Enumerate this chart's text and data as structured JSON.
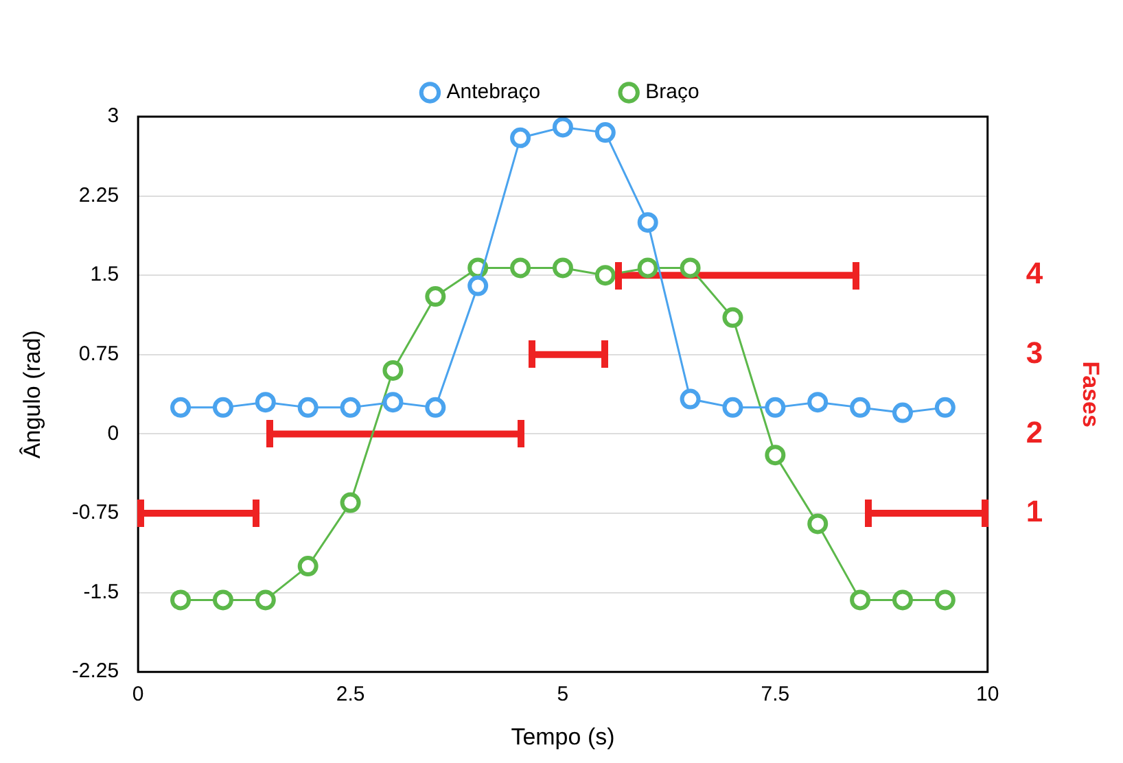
{
  "chart_data": {
    "type": "line",
    "xlabel": "Tempo (s)",
    "ylabel": "Ângulo (rad)",
    "y2label": "Fases",
    "x": [
      0.5,
      1,
      1.5,
      2,
      2.5,
      3,
      3.5,
      4,
      4.5,
      5,
      5.5,
      6,
      6.5,
      7,
      7.5,
      8,
      8.5,
      9,
      9.5
    ],
    "series": [
      {
        "name": "Antebraço",
        "color": "#4aa3ee",
        "values": [
          0.25,
          0.25,
          0.3,
          0.25,
          0.25,
          0.3,
          0.25,
          1.4,
          2.8,
          2.9,
          2.85,
          2.0,
          0.33,
          0.25,
          0.25,
          0.3,
          0.25,
          0.2,
          0.25
        ]
      },
      {
        "name": "Braço",
        "color": "#5cb84a",
        "values": [
          -1.57,
          -1.57,
          -1.57,
          -1.25,
          -0.65,
          0.6,
          1.3,
          1.57,
          1.57,
          1.57,
          1.5,
          1.57,
          1.57,
          1.1,
          -0.2,
          -0.85,
          -1.57,
          -1.57,
          -1.57
        ]
      },
      {
        "type": "line",
        "axis": "y2",
        "marker": "none",
        "color": "#ee2222",
        "x": [
          0,
          1.42,
          null,
          1.53,
          4.53,
          null,
          4.62,
          5.51,
          null,
          5.63,
          8.48,
          null,
          8.57,
          10
        ],
        "values": [
          1,
          1,
          null,
          2,
          2,
          null,
          3,
          3,
          null,
          4,
          4,
          null,
          1,
          1
        ]
      }
    ],
    "xlim": [
      0,
      10
    ],
    "xticks": [
      0,
      2.5,
      5,
      7.5,
      10
    ],
    "ylim": [
      -2.25,
      3
    ],
    "yticks": [
      -2.25,
      -1.5,
      -0.75,
      0,
      0.75,
      1.5,
      2.25,
      3
    ],
    "y2lim": [
      -1,
      6
    ],
    "y2ticks": [
      1,
      2,
      3,
      4
    ],
    "grid": "y",
    "legend": "top",
    "marker": "circle",
    "line_style": "solid"
  }
}
